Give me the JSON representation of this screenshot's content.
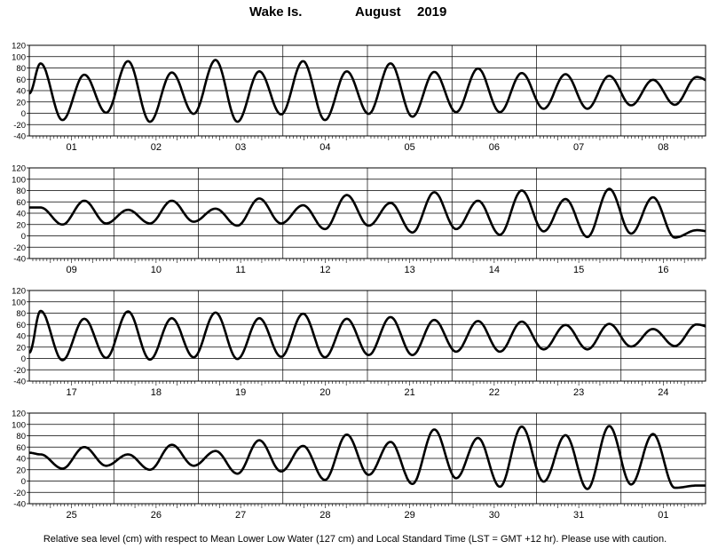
{
  "title": {
    "station": "Wake Is.",
    "month": "August",
    "year": "2019"
  },
  "footer": "Relative sea level (cm) with respect to Mean Lower Low Water (127 cm) and Local Standard Time (LST = GMT +12 hr). Please use with caution.",
  "colors": {
    "line": "#000000",
    "grid": "#000000",
    "background": "#ffffff"
  },
  "chart_data": [
    {
      "type": "line",
      "ylim": [
        -40,
        120
      ],
      "yticks": [
        -40,
        -20,
        0,
        20,
        40,
        60,
        80,
        100,
        120
      ],
      "grid": true,
      "days": [
        "01",
        "02",
        "03",
        "04",
        "05",
        "06",
        "07",
        "08"
      ],
      "highs": [
        88,
        68,
        92,
        72,
        94,
        74,
        92,
        74,
        88,
        73,
        79,
        71,
        69,
        66,
        59,
        64
      ],
      "lows": [
        -12,
        1,
        -15,
        -1,
        -15,
        -2,
        -12,
        -1,
        -6,
        2,
        2,
        8,
        8,
        14,
        15,
        48
      ],
      "start": 35,
      "end": 52
    },
    {
      "type": "line",
      "ylim": [
        -40,
        120
      ],
      "yticks": [
        -40,
        -20,
        0,
        20,
        40,
        60,
        80,
        100,
        120
      ],
      "grid": true,
      "days": [
        "09",
        "10",
        "11",
        "12",
        "13",
        "14",
        "15",
        "16"
      ],
      "highs": [
        50,
        62,
        46,
        62,
        48,
        66,
        54,
        72,
        58,
        77,
        62,
        80,
        65,
        83,
        68,
        10
      ],
      "lows": [
        20,
        22,
        22,
        25,
        18,
        22,
        12,
        18,
        6,
        12,
        2,
        8,
        -2,
        4,
        -3,
        5
      ],
      "start": 50,
      "end": 10
    },
    {
      "type": "line",
      "ylim": [
        -40,
        120
      ],
      "yticks": [
        -40,
        -20,
        0,
        20,
        40,
        60,
        80,
        100,
        120
      ],
      "grid": true,
      "days": [
        "17",
        "18",
        "19",
        "20",
        "21",
        "22",
        "23",
        "24"
      ],
      "highs": [
        84,
        70,
        83,
        71,
        81,
        71,
        79,
        70,
        73,
        68,
        66,
        65,
        59,
        61,
        52,
        60
      ],
      "lows": [
        -3,
        1,
        -2,
        2,
        -1,
        3,
        2,
        6,
        6,
        12,
        12,
        16,
        16,
        21,
        22,
        50
      ],
      "start": 10,
      "end": 50
    },
    {
      "type": "line",
      "ylim": [
        -40,
        120
      ],
      "yticks": [
        -40,
        -20,
        0,
        20,
        40,
        60,
        80,
        100,
        120
      ],
      "grid": true,
      "days": [
        "25",
        "26",
        "27",
        "28",
        "29",
        "30",
        "31",
        "01"
      ],
      "highs": [
        47,
        60,
        47,
        64,
        53,
        72,
        62,
        82,
        69,
        91,
        76,
        96,
        81,
        97,
        83,
        -8
      ],
      "lows": [
        22,
        27,
        20,
        27,
        13,
        17,
        2,
        11,
        -5,
        5,
        -10,
        -1,
        -14,
        -6,
        -12,
        -8
      ],
      "start": 50,
      "end": -8
    }
  ]
}
